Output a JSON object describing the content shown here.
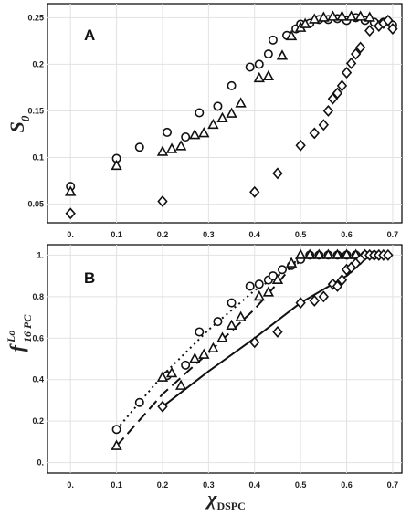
{
  "figure": {
    "panel_a_label": "A",
    "panel_b_label": "B",
    "ylabel_a": "S",
    "ylabel_a_sub": "0",
    "ylabel_b": "f",
    "ylabel_b_sup": "Lo",
    "ylabel_b_sub": "16 PC",
    "xlabel": "χ",
    "xlabel_sub": "DSPC"
  },
  "chart_data": [
    {
      "type": "scatter",
      "title": "",
      "panel": "A",
      "xlabel": "χDSPC",
      "ylabel": "S0",
      "xlim": [
        -0.05,
        0.72
      ],
      "ylim": [
        0.03,
        0.265
      ],
      "x_ticks": [
        0,
        0.1,
        0.2,
        0.3,
        0.4,
        0.5,
        0.6,
        0.7
      ],
      "x_tick_labels": [
        "0.",
        "0.1",
        "0.2",
        "0.3",
        "0.4",
        "0.5",
        "0.6",
        "0.7"
      ],
      "y_ticks": [
        0.05,
        0.1,
        0.15,
        0.2,
        0.25
      ],
      "y_tick_labels": [
        "0.05",
        "0.1",
        "0.15",
        "0.2",
        "0.25"
      ],
      "grid": true,
      "series": [
        {
          "marker": "circle",
          "points": [
            [
              0,
              0.069
            ],
            [
              0.1,
              0.099
            ],
            [
              0.15,
              0.111
            ],
            [
              0.21,
              0.127
            ],
            [
              0.25,
              0.122
            ],
            [
              0.28,
              0.148
            ],
            [
              0.32,
              0.155
            ],
            [
              0.35,
              0.177
            ],
            [
              0.39,
              0.197
            ],
            [
              0.41,
              0.2
            ],
            [
              0.43,
              0.211
            ],
            [
              0.44,
              0.226
            ],
            [
              0.47,
              0.231
            ],
            [
              0.49,
              0.238
            ],
            [
              0.5,
              0.243
            ],
            [
              0.52,
              0.244
            ],
            [
              0.54,
              0.248
            ],
            [
              0.56,
              0.248
            ],
            [
              0.58,
              0.249
            ],
            [
              0.6,
              0.247
            ],
            [
              0.62,
              0.25
            ],
            [
              0.64,
              0.247
            ],
            [
              0.66,
              0.245
            ],
            [
              0.68,
              0.245
            ],
            [
              0.7,
              0.242
            ]
          ]
        },
        {
          "marker": "triangle",
          "points": [
            [
              0,
              0.063
            ],
            [
              0.1,
              0.091
            ],
            [
              0.2,
              0.106
            ],
            [
              0.22,
              0.109
            ],
            [
              0.24,
              0.112
            ],
            [
              0.27,
              0.124
            ],
            [
              0.29,
              0.126
            ],
            [
              0.31,
              0.135
            ],
            [
              0.33,
              0.142
            ],
            [
              0.35,
              0.147
            ],
            [
              0.37,
              0.158
            ],
            [
              0.41,
              0.185
            ],
            [
              0.43,
              0.187
            ],
            [
              0.46,
              0.209
            ],
            [
              0.48,
              0.23
            ],
            [
              0.5,
              0.239
            ],
            [
              0.51,
              0.243
            ],
            [
              0.53,
              0.248
            ],
            [
              0.55,
              0.25
            ],
            [
              0.57,
              0.251
            ],
            [
              0.59,
              0.251
            ],
            [
              0.61,
              0.251
            ],
            [
              0.63,
              0.251
            ],
            [
              0.65,
              0.25
            ]
          ]
        },
        {
          "marker": "diamond",
          "points": [
            [
              0,
              0.04
            ],
            [
              0.2,
              0.053
            ],
            [
              0.4,
              0.063
            ],
            [
              0.45,
              0.083
            ],
            [
              0.5,
              0.113
            ],
            [
              0.53,
              0.126
            ],
            [
              0.55,
              0.135
            ],
            [
              0.56,
              0.15
            ],
            [
              0.57,
              0.163
            ],
            [
              0.58,
              0.169
            ],
            [
              0.59,
              0.177
            ],
            [
              0.6,
              0.191
            ],
            [
              0.61,
              0.201
            ],
            [
              0.62,
              0.211
            ],
            [
              0.63,
              0.218
            ],
            [
              0.65,
              0.236
            ],
            [
              0.67,
              0.241
            ],
            [
              0.68,
              0.244
            ],
            [
              0.69,
              0.247
            ],
            [
              0.7,
              0.238
            ]
          ]
        }
      ]
    },
    {
      "type": "scatter",
      "title": "",
      "panel": "B",
      "xlabel": "χDSPC",
      "ylabel": "f Lo 16 PC",
      "xlim": [
        -0.05,
        0.72
      ],
      "ylim": [
        -0.05,
        1.05
      ],
      "x_ticks": [
        0,
        0.1,
        0.2,
        0.3,
        0.4,
        0.5,
        0.6,
        0.7
      ],
      "x_tick_labels": [
        "0.",
        "0.1",
        "0.2",
        "0.3",
        "0.4",
        "0.5",
        "0.6",
        "0.7"
      ],
      "y_ticks": [
        0,
        0.2,
        0.4,
        0.6,
        0.8,
        1.0
      ],
      "y_tick_labels": [
        "0.",
        "0.2",
        "0.4",
        "0.6",
        "0.8",
        "1."
      ],
      "grid": true,
      "series": [
        {
          "marker": "circle",
          "line": "dotted",
          "points": [
            [
              0.1,
              0.16
            ],
            [
              0.15,
              0.29
            ],
            [
              0.21,
              0.42
            ],
            [
              0.25,
              0.47
            ],
            [
              0.28,
              0.63
            ],
            [
              0.32,
              0.68
            ],
            [
              0.35,
              0.77
            ],
            [
              0.39,
              0.85
            ],
            [
              0.41,
              0.86
            ],
            [
              0.43,
              0.88
            ],
            [
              0.44,
              0.9
            ],
            [
              0.46,
              0.93
            ],
            [
              0.48,
              0.95
            ],
            [
              0.5,
              0.98
            ],
            [
              0.52,
              1.0
            ],
            [
              0.54,
              1.0
            ],
            [
              0.56,
              1.0
            ],
            [
              0.58,
              1.0
            ],
            [
              0.6,
              1.0
            ],
            [
              0.62,
              1.0
            ],
            [
              0.64,
              1.0
            ],
            [
              0.66,
              1.0
            ]
          ],
          "curve": [
            [
              0.1,
              0.16
            ],
            [
              0.2,
              0.42
            ],
            [
              0.3,
              0.64
            ],
            [
              0.4,
              0.83
            ],
            [
              0.45,
              0.9
            ],
            [
              0.5,
              0.97
            ],
            [
              0.52,
              1.0
            ]
          ]
        },
        {
          "marker": "triangle",
          "line": "dashed",
          "points": [
            [
              0.1,
              0.08
            ],
            [
              0.2,
              0.41
            ],
            [
              0.22,
              0.43
            ],
            [
              0.24,
              0.37
            ],
            [
              0.27,
              0.5
            ],
            [
              0.29,
              0.52
            ],
            [
              0.31,
              0.55
            ],
            [
              0.33,
              0.6
            ],
            [
              0.35,
              0.66
            ],
            [
              0.37,
              0.7
            ],
            [
              0.41,
              0.8
            ],
            [
              0.43,
              0.82
            ],
            [
              0.45,
              0.88
            ],
            [
              0.48,
              0.96
            ],
            [
              0.5,
              1.0
            ],
            [
              0.52,
              1.0
            ],
            [
              0.54,
              1.0
            ],
            [
              0.56,
              1.0
            ],
            [
              0.58,
              1.0
            ],
            [
              0.6,
              1.0
            ],
            [
              0.62,
              1.0
            ],
            [
              0.64,
              1.0
            ]
          ],
          "curve": [
            [
              0.1,
              0.08
            ],
            [
              0.2,
              0.33
            ],
            [
              0.3,
              0.53
            ],
            [
              0.4,
              0.74
            ],
            [
              0.46,
              0.89
            ],
            [
              0.5,
              1.0
            ]
          ]
        },
        {
          "marker": "diamond",
          "line": "solid",
          "points": [
            [
              0.2,
              0.27
            ],
            [
              0.4,
              0.58
            ],
            [
              0.45,
              0.63
            ],
            [
              0.5,
              0.77
            ],
            [
              0.53,
              0.78
            ],
            [
              0.55,
              0.8
            ],
            [
              0.57,
              0.86
            ],
            [
              0.58,
              0.85
            ],
            [
              0.59,
              0.88
            ],
            [
              0.6,
              0.93
            ],
            [
              0.61,
              0.94
            ],
            [
              0.62,
              0.96
            ],
            [
              0.63,
              0.98
            ],
            [
              0.64,
              1.0
            ],
            [
              0.65,
              1.0
            ],
            [
              0.66,
              1.0
            ],
            [
              0.67,
              1.0
            ],
            [
              0.68,
              1.0
            ],
            [
              0.69,
              1.0
            ]
          ],
          "curve": [
            [
              0.2,
              0.27
            ],
            [
              0.3,
              0.44
            ],
            [
              0.4,
              0.6
            ],
            [
              0.5,
              0.77
            ],
            [
              0.6,
              0.9
            ],
            [
              0.65,
              1.0
            ]
          ]
        }
      ]
    }
  ]
}
